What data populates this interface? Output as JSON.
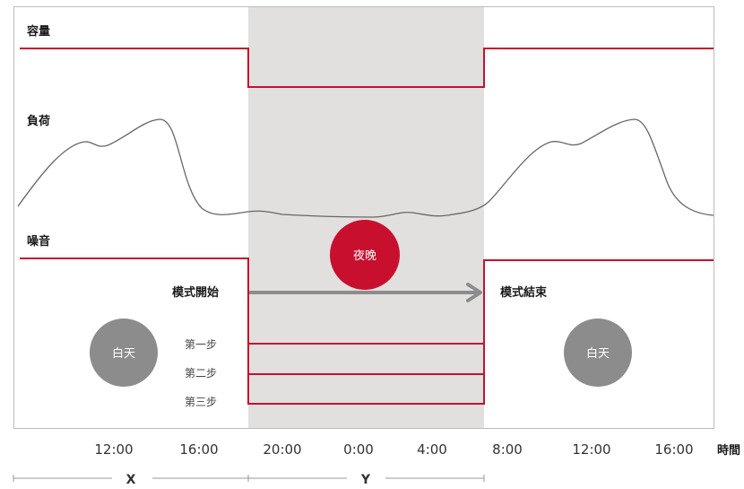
{
  "labels": {
    "capacity": "容量",
    "load": "負荷",
    "noise": "噪音",
    "mode_start": "模式開始",
    "mode_end": "模式結束",
    "step1": "第一步",
    "step2": "第二步",
    "step3": "第三步",
    "night": "夜晚",
    "day_left": "白天",
    "day_right": "白天",
    "time_axis": "時間",
    "segment_x": "X",
    "segment_y": "Y"
  },
  "time_ticks": [
    "12:00",
    "16:00",
    "20:00",
    "0:00",
    "4:00",
    "8:00",
    "12:00",
    "16:00"
  ],
  "colors": {
    "accent": "#c8102e",
    "night_band": "#e2e0de",
    "day_circle": "#8c8c8c",
    "arrow": "#8c8c8c",
    "load_curve": "#666666",
    "frame": "#bdbdbd"
  }
}
